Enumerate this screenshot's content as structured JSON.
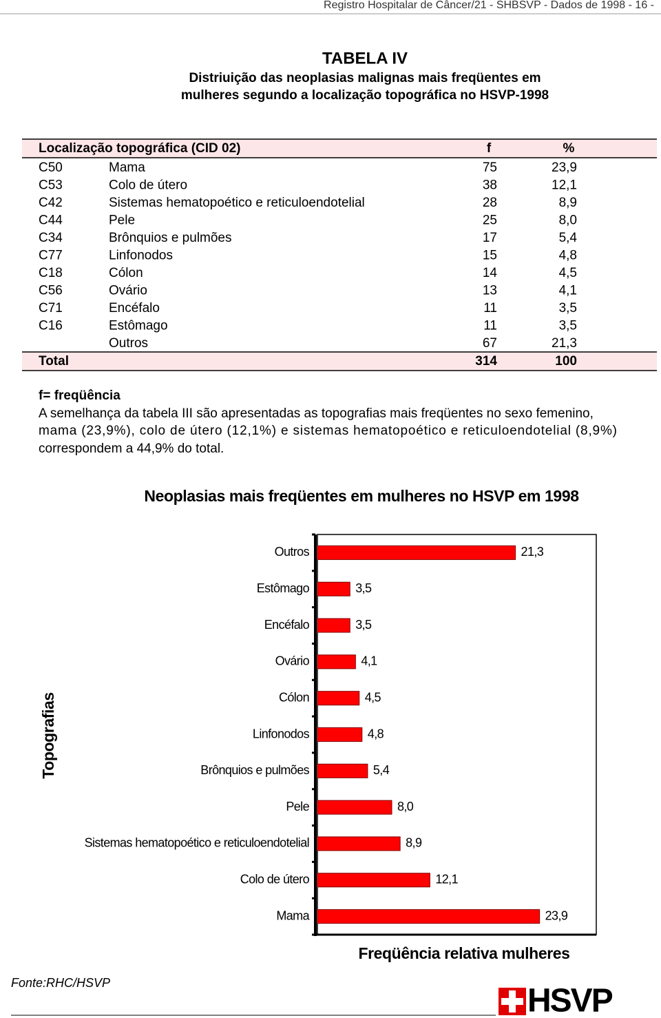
{
  "header": {
    "running_title": "Registro Hospitalar de Câncer/21 - SHBSVP - Dados de  1998  - 16 -"
  },
  "table_title": "TABELA IV",
  "table_subtitle": [
    "Distriuição das neoplasias malignas mais freqüentes em",
    "mulheres segundo a localização topográfica no HSVP-1998"
  ],
  "table": {
    "header": [
      "Localização topográfica (CID 02)",
      "f",
      "%"
    ],
    "rows": [
      {
        "code": "C50",
        "site": "Mama",
        "f": "75",
        "pct": "23,9"
      },
      {
        "code": "C53",
        "site": "Colo de útero",
        "f": "38",
        "pct": "12,1"
      },
      {
        "code": "C42",
        "site": "Sistemas hematopoético e reticuloendotelial",
        "f": "28",
        "pct": "8,9"
      },
      {
        "code": "C44",
        "site": "Pele",
        "f": "25",
        "pct": "8,0"
      },
      {
        "code": "C34",
        "site": "Brônquios e pulmões",
        "f": "17",
        "pct": "5,4"
      },
      {
        "code": "C77",
        "site": "Linfonodos",
        "f": "15",
        "pct": "4,8"
      },
      {
        "code": "C18",
        "site": "Cólon",
        "f": "14",
        "pct": "4,5"
      },
      {
        "code": "C56",
        "site": "Ovário",
        "f": "13",
        "pct": "4,1"
      },
      {
        "code": "C71",
        "site": "Encéfalo",
        "f": "11",
        "pct": "3,5"
      },
      {
        "code": "C16",
        "site": "Estômago",
        "f": "11",
        "pct": "3,5"
      },
      {
        "site": "Outros",
        "f": "67",
        "pct": "21,3"
      }
    ],
    "total": {
      "label": "Total",
      "f": "314",
      "pct": "100"
    }
  },
  "note": {
    "legend": "f= freqüência",
    "lines": [
      "A semelhança da tabela III são apresentadas as topografias mais freqüentes no sexo femenino,",
      "mama (23,9%), colo de útero (12,1%) e sistemas hematopoético e reticuloendotelial (8,9%)",
      "correspondem a 44,9% do total."
    ]
  },
  "chart_data": {
    "type": "hbar",
    "title": "Neoplasias mais freqüentes em mulheres no HSVP em 1998",
    "y_label": "Topografias",
    "x_label": "Freqüência relativa mulheres",
    "categories": [
      "Outros",
      "Estômago",
      "Encéfalo",
      "Ovário",
      "Cólon",
      "Linfonodos",
      "Brônquios e pulmões",
      "Pele",
      "Sistemas hematopoético e reticuloendotelial",
      "Colo de útero",
      "Mama"
    ],
    "values": [
      21.3,
      3.5,
      3.5,
      4.1,
      4.5,
      4.8,
      5.4,
      8.0,
      8.9,
      12.1,
      23.9
    ],
    "value_labels": [
      "21,3",
      "3,5",
      "3,5",
      "4,1",
      "4,5",
      "4,8",
      "5,4",
      "8,0",
      "8,9",
      "12,1",
      "23,9"
    ],
    "color": "#ff0000",
    "xlim": [
      0,
      30
    ]
  },
  "footer": {
    "source": "Fonte:RHC/HSVP",
    "logo": "HSVP"
  }
}
